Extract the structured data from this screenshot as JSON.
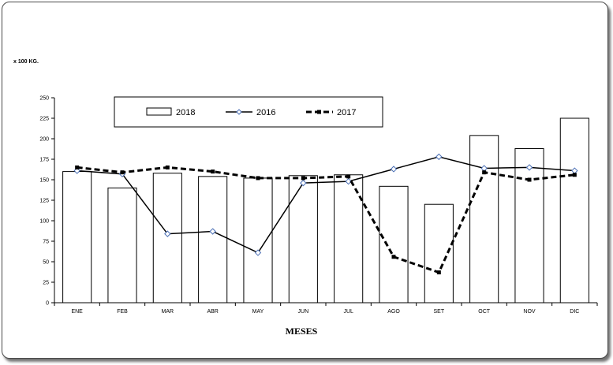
{
  "chart_data": {
    "type": "bar",
    "title": "",
    "unit_label": "x 100 KG.",
    "xlabel": "MESES",
    "categories": [
      "ENE",
      "FEB",
      "MAR",
      "ABR",
      "MAY",
      "JUN",
      "JUL",
      "AGO",
      "SET",
      "OCT",
      "NOV",
      "DIC"
    ],
    "ylim": [
      0,
      250
    ],
    "yticks": [
      0,
      25,
      50,
      75,
      100,
      125,
      150,
      175,
      200,
      225,
      250
    ],
    "grid": false,
    "legend_position": "top-center",
    "series": [
      {
        "name": "2018",
        "kind": "bar",
        "color": "#ffffff",
        "values": [
          160,
          140,
          158,
          154,
          152,
          155,
          156,
          142,
          120,
          204,
          188,
          225
        ]
      },
      {
        "name": "2016",
        "kind": "line",
        "style": "solid",
        "marker": "diamond",
        "color": "#000000",
        "values": [
          161,
          157,
          84,
          87,
          61,
          146,
          148,
          163,
          178,
          164,
          165,
          161
        ]
      },
      {
        "name": "2017",
        "kind": "line",
        "style": "dashed",
        "marker": "square",
        "color": "#000000",
        "values": [
          165,
          159,
          165,
          160,
          152,
          152,
          154,
          56,
          37,
          159,
          150,
          156
        ]
      }
    ]
  }
}
